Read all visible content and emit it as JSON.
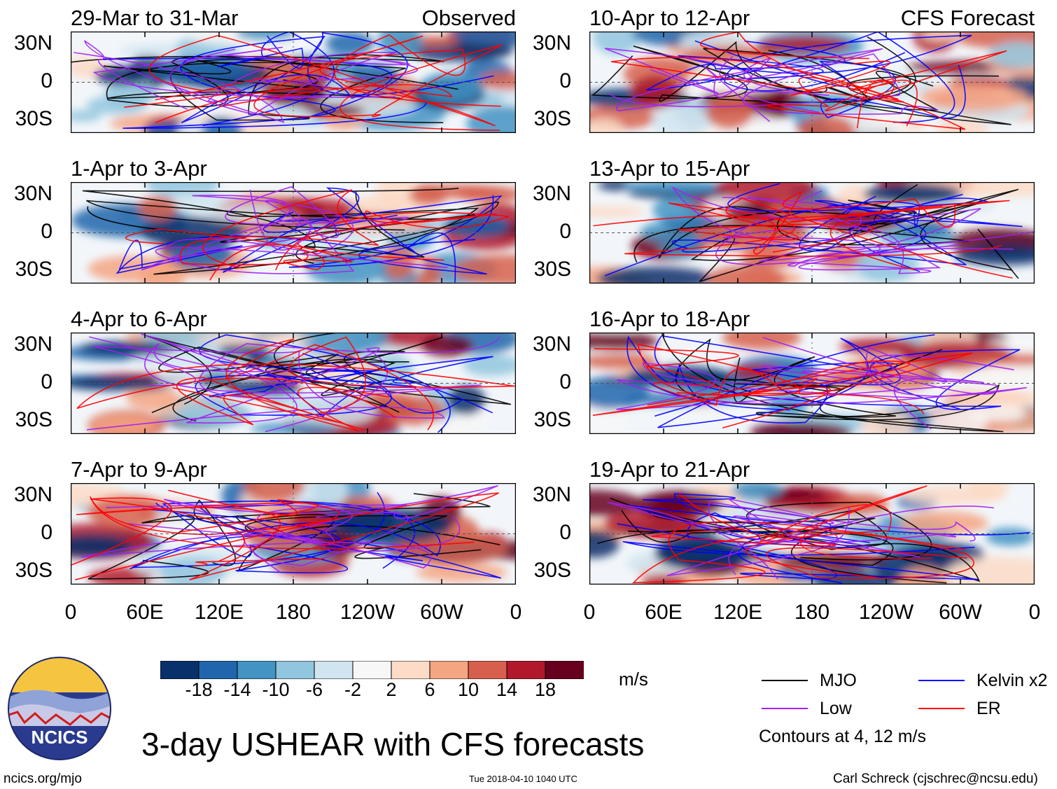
{
  "chart_data": {
    "type": "heatmap",
    "title": "3-day USHEAR with CFS forecasts",
    "units": "m/s",
    "x_ticks": [
      "0",
      "60E",
      "120E",
      "180",
      "120W",
      "60W",
      "0"
    ],
    "y_ticks": [
      "30N",
      "0",
      "30S"
    ],
    "columns": [
      {
        "label": "Observed",
        "panels": [
          "29-Mar to 31-Mar",
          "1-Apr to 3-Apr",
          "4-Apr to 6-Apr",
          "7-Apr to 9-Apr"
        ]
      },
      {
        "label": "CFS Forecast",
        "panels": [
          "10-Apr to 12-Apr",
          "13-Apr to 15-Apr",
          "16-Apr to 18-Apr",
          "19-Apr to 21-Apr"
        ]
      }
    ],
    "colorbar": {
      "levels": [
        "-18",
        "-14",
        "-10",
        "-6",
        "-2",
        "2",
        "6",
        "10",
        "14",
        "18"
      ],
      "colors": [
        "#08306b",
        "#2166ac",
        "#4393c3",
        "#92c5de",
        "#d1e5f0",
        "#f7f7f7",
        "#fddbc7",
        "#f4a582",
        "#d6604d",
        "#b2182b",
        "#67001f"
      ]
    },
    "legend": [
      {
        "name": "MJO",
        "color": "#000000"
      },
      {
        "name": "Kelvin x2",
        "color": "#0000ff"
      },
      {
        "name": "Low",
        "color": "#a020f0"
      },
      {
        "name": "ER",
        "color": "#ff0000"
      }
    ],
    "contour_note": "Contours at 4, 12 m/s"
  },
  "footer": {
    "logo_text": "NCICS",
    "site": "ncics.org/mjo",
    "timestamp": "Tue 2018-04-10 1040 UTC",
    "credit": "Carl Schreck (cjschrec@ncsu.edu)"
  }
}
